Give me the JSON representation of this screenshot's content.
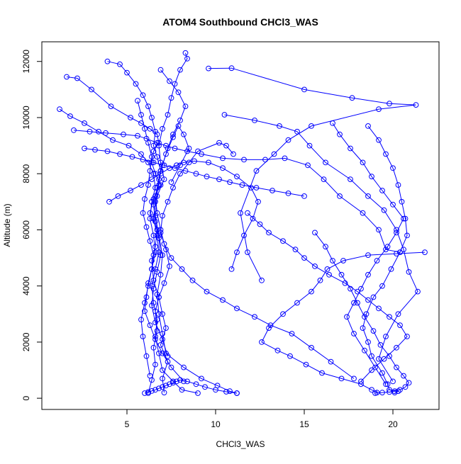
{
  "chart_data": {
    "type": "scatter",
    "title": "ATOM4 Southbound CHCl3_WAS",
    "xlabel": "CHCl3_WAS",
    "ylabel": "Altitude (m)",
    "xlim": [
      0.2,
      22.6
    ],
    "ylim": [
      -400,
      12700
    ],
    "xticks": [
      5,
      10,
      15,
      20
    ],
    "yticks": [
      0,
      2000,
      4000,
      6000,
      8000,
      10000,
      12000
    ],
    "grid": false,
    "legend": "none",
    "series_color": "#0000ff",
    "marker": "open-circle",
    "connected": true,
    "series": [
      {
        "x": [
          6.2,
          6.4,
          6.6,
          6.5,
          6.7,
          6.6,
          6.8,
          6.5,
          6.4,
          6.6,
          6.7,
          6.3,
          6.5,
          6.9,
          6.6,
          6.4,
          6.5,
          6.8,
          6.7,
          6.3,
          5.8,
          5.2,
          4.1,
          3.0,
          2.2,
          1.6
        ],
        "y": [
          180,
          650,
          1200,
          1800,
          2400,
          3100,
          3600,
          4200,
          4900,
          5400,
          6000,
          6600,
          7100,
          7600,
          8000,
          8400,
          8800,
          9100,
          9400,
          9600,
          9800,
          10000,
          10400,
          11000,
          11400,
          11450
        ]
      },
      {
        "x": [
          7.1,
          7.0,
          7.3,
          6.9,
          7.2,
          7.0,
          6.8,
          7.1,
          7.4,
          7.2,
          6.9,
          7.0,
          7.3,
          7.6,
          8.0,
          8.5,
          9.0,
          10.2,
          10.6,
          11.0
        ],
        "y": [
          200,
          700,
          1300,
          1900,
          2500,
          3000,
          3600,
          4100,
          4700,
          5300,
          5900,
          6500,
          7000,
          7500,
          8000,
          8400,
          8800,
          9100,
          9000,
          8700
        ]
      },
      {
        "x": [
          9.6,
          10.9,
          15.0,
          17.7,
          19.8,
          21.3,
          19.2,
          15.4,
          14.1,
          13.3,
          12.3,
          11.4,
          11.8,
          12.6
        ],
        "y": [
          11750,
          11760,
          11000,
          10700,
          10500,
          10450,
          10300,
          9700,
          9200,
          8700,
          8100,
          6600,
          5200,
          4200
        ]
      },
      {
        "x": [
          10.5,
          12.2,
          13.6,
          14.6,
          15.3,
          16.2,
          17.6,
          18.6,
          19.5,
          20.2,
          20.6,
          20.9,
          21.4,
          20.3,
          19.6,
          19.2,
          20.0
        ],
        "y": [
          10100,
          9900,
          9700,
          9500,
          9000,
          8400,
          7800,
          7200,
          6700,
          6000,
          5300,
          4500,
          3800,
          3000,
          2200,
          1400,
          600
        ]
      },
      {
        "x": [
          18.6,
          19.2,
          19.6,
          20.0,
          20.3,
          20.5,
          20.7,
          20.8,
          20.4,
          19.9,
          19.4,
          18.9,
          18.5,
          18.3,
          18.6,
          18.8,
          19.4,
          19.7,
          19.8,
          20.3,
          20.1
        ],
        "y": [
          9700,
          9200,
          8700,
          8200,
          7600,
          7000,
          6400,
          5800,
          5200,
          4600,
          4000,
          3600,
          3000,
          2500,
          2000,
          1500,
          900,
          500,
          300,
          250,
          200
        ]
      },
      {
        "x": [
          8.3,
          8.4,
          8.0,
          7.7,
          7.5,
          7.3,
          7.0,
          6.8,
          6.9,
          7.1,
          6.7,
          6.6,
          6.8,
          7.0,
          6.9,
          6.7,
          6.8,
          7.0,
          7.2,
          8.2,
          9.2,
          10.1,
          10.8,
          11.2
        ],
        "y": [
          12300,
          12100,
          11700,
          11200,
          10700,
          10100,
          9600,
          9000,
          8400,
          7800,
          7200,
          6500,
          5800,
          5100,
          4400,
          3700,
          3000,
          2300,
          1600,
          1100,
          700,
          450,
          250,
          180
        ]
      },
      {
        "x": [
          3.9,
          4.6,
          5.0,
          5.5,
          5.9,
          6.2,
          6.4,
          6.6,
          6.5,
          6.7,
          6.9,
          6.8,
          6.6,
          6.5,
          6.7,
          6.8,
          6.6,
          6.4,
          6.5,
          6.7,
          6.6,
          6.8,
          7.0,
          7.6,
          8.1,
          9.0
        ],
        "y": [
          12000,
          11900,
          11600,
          11200,
          10800,
          10400,
          10000,
          9500,
          9000,
          8600,
          8100,
          7600,
          7000,
          6400,
          5800,
          5200,
          4600,
          4000,
          3400,
          2800,
          2200,
          1600,
          1000,
          600,
          300,
          180
        ]
      },
      {
        "x": [
          1.2,
          1.8,
          2.6,
          3.4,
          4.2,
          5.1,
          5.8,
          6.2,
          6.5,
          6.6,
          6.4,
          6.3,
          6.5,
          6.6,
          6.4,
          6.2,
          6.0,
          5.8,
          5.9,
          6.1,
          6.3
        ],
        "y": [
          10300,
          10050,
          9800,
          9500,
          9200,
          9000,
          8700,
          8400,
          8000,
          7500,
          7000,
          6400,
          5800,
          5200,
          4600,
          4000,
          3400,
          2800,
          2200,
          1500,
          800
        ]
      },
      {
        "x": [
          2.0,
          2.9,
          3.8,
          4.8,
          5.6,
          6.1,
          6.7,
          7.2,
          7.7,
          8.4,
          9.2,
          10.4,
          11.6,
          12.8,
          13.9,
          15.2,
          16.1,
          17.0,
          18.3,
          19.2,
          19.6,
          20.4
        ],
        "y": [
          9550,
          9500,
          9450,
          9400,
          9350,
          9250,
          9100,
          9000,
          8900,
          8800,
          8700,
          8550,
          8500,
          8500,
          8550,
          8300,
          7800,
          7200,
          6600,
          6000,
          5300,
          5200
        ]
      },
      {
        "x": [
          21.8,
          20.2,
          18.6,
          17.2,
          16.3,
          15.9,
          15.4,
          14.6,
          13.8,
          13.0,
          12.6,
          13.5,
          14.2,
          15.1,
          16.0,
          17.1,
          18.2,
          18.8,
          19.1
        ],
        "y": [
          5200,
          5150,
          5100,
          4900,
          4600,
          4200,
          3800,
          3400,
          3000,
          2500,
          2000,
          1700,
          1500,
          1200,
          900,
          700,
          500,
          300,
          200
        ]
      },
      {
        "x": [
          6.9,
          7.4,
          7.9,
          8.3,
          8.0,
          7.6,
          7.3,
          7.0,
          6.8,
          6.6,
          6.7,
          6.9,
          7.1,
          7.5,
          8.1,
          8.7,
          9.5,
          10.4,
          11.2,
          12.2,
          13.1,
          14.3,
          15.4,
          16.5,
          17.8
        ],
        "y": [
          11700,
          11300,
          10900,
          10400,
          9900,
          9400,
          8900,
          8300,
          7800,
          7200,
          6600,
          6000,
          5500,
          5000,
          4600,
          4200,
          3800,
          3500,
          3200,
          2900,
          2600,
          2300,
          1800,
          1300,
          700
        ]
      },
      {
        "x": [
          5.6,
          5.8,
          6.0,
          6.2,
          6.4,
          6.3,
          6.2,
          6.0,
          5.9,
          6.1,
          6.3,
          6.5,
          6.4,
          6.2,
          6.1,
          6.0,
          6.3,
          6.6,
          7.0,
          7.5,
          8.2
        ],
        "y": [
          10600,
          10100,
          9600,
          9100,
          8600,
          8100,
          7600,
          7100,
          6600,
          6100,
          5600,
          5100,
          4600,
          4100,
          3600,
          3100,
          2600,
          2100,
          1600,
          1100,
          600
        ]
      },
      {
        "x": [
          11.8,
          12.5,
          13.0,
          13.8,
          14.5,
          15.0,
          15.6,
          16.4,
          17.3,
          18.0,
          18.6,
          19.2,
          19.8,
          20.4,
          20.8,
          20.2,
          19.5,
          18.8,
          18.2
        ],
        "y": [
          6600,
          6200,
          5900,
          5600,
          5300,
          5000,
          4700,
          4400,
          4100,
          3800,
          3500,
          3200,
          2900,
          2600,
          2200,
          1800,
          1400,
          1000,
          600
        ]
      },
      {
        "x": [
          16.6,
          17.0,
          17.6,
          18.3,
          18.8,
          19.4,
          20.0,
          20.6,
          20.2,
          19.7,
          19.1,
          18.6,
          18.2,
          17.8,
          17.4,
          17.8,
          18.4,
          19.0,
          19.6
        ],
        "y": [
          9800,
          9400,
          8900,
          8400,
          7900,
          7400,
          6900,
          6400,
          5900,
          5400,
          4900,
          4400,
          3900,
          3400,
          2900,
          2300,
          1700,
          1100,
          500
        ]
      },
      {
        "x": [
          4.0,
          4.5,
          5.2,
          5.8,
          6.4,
          6.9,
          7.4,
          7.8,
          8.2,
          8.8,
          9.6,
          10.4,
          11.2,
          12.0,
          12.4,
          12.1,
          11.6,
          11.2,
          10.9
        ],
        "y": [
          7000,
          7200,
          7400,
          7600,
          7800,
          8000,
          8200,
          8300,
          8400,
          8450,
          8400,
          8200,
          7900,
          7500,
          7000,
          6400,
          5800,
          5200,
          4600
        ]
      },
      {
        "x": [
          7.3,
          7.0,
          6.6,
          6.4,
          6.5,
          6.7,
          6.9,
          6.8,
          6.6,
          6.5,
          6.7,
          6.9,
          7.2,
          7.6,
          7.9,
          8.2,
          8.5,
          8.0,
          7.5
        ],
        "y": [
          1500,
          2100,
          2700,
          3300,
          3900,
          4500,
          5100,
          5700,
          6300,
          6900,
          7500,
          8100,
          8700,
          9300,
          9700,
          9400,
          8900,
          8300,
          7700
        ]
      },
      {
        "x": [
          2.6,
          3.2,
          3.9,
          4.6,
          5.3,
          5.9,
          6.5,
          7.1,
          7.7,
          8.3,
          8.9,
          9.5,
          10.2,
          10.8,
          11.5,
          12.3,
          13.2,
          14.1,
          15.0
        ],
        "y": [
          8900,
          8850,
          8800,
          8700,
          8600,
          8500,
          8400,
          8300,
          8200,
          8100,
          8000,
          7900,
          7800,
          7700,
          7600,
          7500,
          7400,
          7300,
          7200
        ]
      },
      {
        "x": [
          6.0,
          6.2,
          6.4,
          6.6,
          6.8,
          7.0,
          7.2,
          7.4,
          7.6,
          7.8,
          8.0,
          8.4,
          8.9,
          9.4,
          10.0,
          10.6,
          11.2
        ],
        "y": [
          180,
          220,
          260,
          300,
          350,
          400,
          450,
          500,
          550,
          600,
          650,
          600,
          500,
          400,
          300,
          230,
          180
        ]
      },
      {
        "x": [
          19.0,
          19.4,
          19.8,
          20.1,
          20.4,
          20.7,
          20.9,
          20.6,
          20.2,
          19.8,
          19.3,
          18.9,
          18.4,
          18.0,
          17.6,
          17.1,
          16.6,
          16.2,
          15.6
        ],
        "y": [
          180,
          200,
          220,
          250,
          300,
          400,
          550,
          800,
          1100,
          1500,
          1900,
          2400,
          2900,
          3400,
          3900,
          4400,
          4900,
          5400,
          5900
        ]
      }
    ]
  }
}
